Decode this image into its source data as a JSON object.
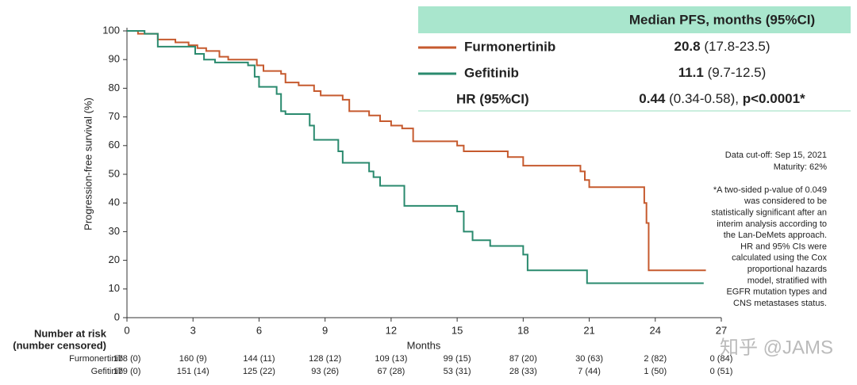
{
  "chart_data": {
    "type": "line",
    "step": true,
    "y_label": "Progression-free survival (%)",
    "x_label": "Months",
    "xlim": [
      0,
      27
    ],
    "ylim": [
      0,
      100
    ],
    "xticks": [
      0,
      3,
      6,
      9,
      12,
      15,
      18,
      21,
      24,
      27
    ],
    "yticks": [
      0,
      10,
      20,
      30,
      40,
      50,
      60,
      70,
      80,
      90,
      100
    ],
    "series": [
      {
        "name": "Furmonertinib",
        "color": "#c65a2e",
        "x": [
          0,
          0.5,
          0.5,
          1.4,
          1.4,
          2.2,
          2.2,
          2.8,
          2.8,
          3.2,
          3.2,
          3.6,
          3.6,
          4.2,
          4.2,
          4.6,
          4.6,
          5.9,
          5.9,
          6.2,
          6.2,
          7,
          7,
          7.2,
          7.2,
          7.8,
          7.8,
          8.5,
          8.5,
          8.8,
          8.8,
          9.8,
          9.8,
          10.1,
          10.1,
          11,
          11,
          11.5,
          11.5,
          12,
          12,
          12.5,
          12.5,
          13,
          13,
          15,
          15,
          15.3,
          15.3,
          17.3,
          17.3,
          18,
          18,
          20.6,
          20.6,
          20.8,
          20.8,
          21,
          21,
          23.5,
          23.5,
          23.6,
          23.6,
          23.7,
          23.7,
          26.3
        ],
        "values": [
          100,
          100,
          99,
          99,
          97,
          97,
          96,
          96,
          95,
          95,
          94,
          94,
          93,
          93,
          91,
          91,
          90,
          90,
          88,
          88,
          86,
          86,
          85,
          85,
          82,
          82,
          81,
          81,
          79,
          79,
          77.5,
          77.5,
          76,
          76,
          72,
          72,
          70.5,
          70.5,
          68.5,
          68.5,
          67,
          67,
          66,
          66,
          61.5,
          61.5,
          60,
          60,
          58,
          58,
          56,
          56,
          53,
          53,
          51,
          51,
          48,
          48,
          45.5,
          45.5,
          40,
          40,
          33,
          33,
          16.5,
          16.5
        ]
      },
      {
        "name": "Gefitinib",
        "color": "#2a8a6e",
        "x": [
          0,
          0.8,
          0.8,
          1.4,
          1.4,
          3.1,
          3.1,
          3.5,
          3.5,
          4,
          4,
          5.5,
          5.5,
          5.8,
          5.8,
          6,
          6,
          6.8,
          6.8,
          7,
          7,
          7.2,
          7.2,
          8.3,
          8.3,
          8.5,
          8.5,
          9.6,
          9.6,
          9.8,
          9.8,
          11,
          11,
          11.2,
          11.2,
          11.5,
          11.5,
          12.6,
          12.6,
          15,
          15,
          15.3,
          15.3,
          15.7,
          15.7,
          16.5,
          16.5,
          18,
          18,
          18.2,
          18.2,
          20.9,
          20.9,
          26.2
        ],
        "values": [
          100,
          100,
          99,
          99,
          94.5,
          94.5,
          92,
          92,
          90,
          90,
          89,
          89,
          88,
          88,
          84,
          84,
          80.5,
          80.5,
          78,
          78,
          72,
          72,
          71,
          71,
          67,
          67,
          62,
          62,
          58,
          58,
          54,
          54,
          51,
          51,
          49,
          49,
          46,
          46,
          39,
          39,
          37,
          37,
          30,
          30,
          27,
          27,
          25,
          25,
          22,
          22,
          16.5,
          16.5,
          12,
          12
        ]
      }
    ],
    "legend_table": {
      "header": "Median PFS, months (95%CI)",
      "rows": [
        {
          "median": 20.8,
          "ci": "(17.8-23.5)"
        },
        {
          "median": 11.1,
          "ci": "(9.7-12.5)"
        }
      ],
      "hr": {
        "label": "HR (95%CI)",
        "value": 0.44,
        "ci": "(0.34-0.58),",
        "p": "p<0.0001*"
      }
    },
    "notes": [
      "Data cut-off: Sep 15, 2021",
      "Maturity: 62%"
    ],
    "footnote": [
      "*A two-sided p-value of 0.049",
      "was considered to be",
      "statistically significant after an",
      "interim analysis according to",
      "the Lan-DeMets approach.",
      "HR and 95% CIs were",
      "calculated using the Cox",
      "proportional hazards",
      "model, stratified with",
      "EGFR mutation types and",
      "CNS metastases status."
    ],
    "risk_table": {
      "title": "Number at risk",
      "subtitle": "(number censored)",
      "rows": [
        [
          "178 (0)",
          "160 (9)",
          "144 (11)",
          "128 (12)",
          "109 (13)",
          "99 (15)",
          "87 (20)",
          "30 (63)",
          "2 (82)",
          "0 (84)"
        ],
        [
          "179 (0)",
          "151 (14)",
          "125 (22)",
          "93 (26)",
          "67 (28)",
          "53 (31)",
          "28 (33)",
          "7 (44)",
          "1 (50)",
          "0 (51)"
        ]
      ]
    },
    "watermark": "知乎 @JAMS"
  }
}
